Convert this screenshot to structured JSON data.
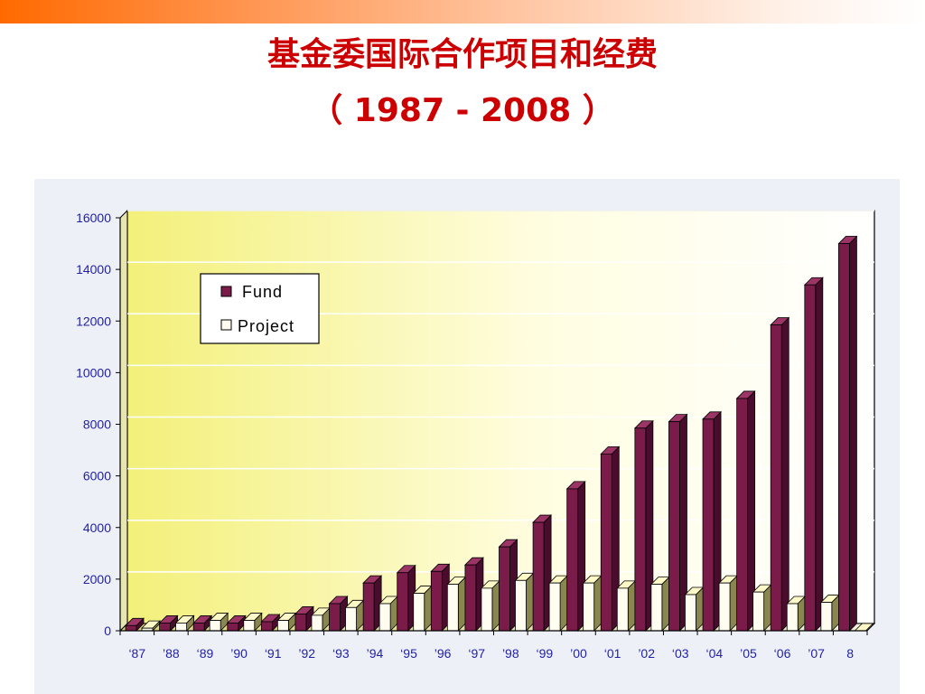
{
  "slide": {
    "title": "基金委国际合作项目和经费",
    "subtitle": "（ 1987 - 2008 ）"
  },
  "colors": {
    "fund_front": "#7a1b4a",
    "fund_side": "#4a0c2c",
    "fund_top": "#9c3566",
    "project_front": "#fffdf0",
    "project_side": "#8a8650",
    "project_top": "#fff9c8",
    "axis_text": "#1f1fa8",
    "title": "#cc0000"
  },
  "chart_data": {
    "type": "bar",
    "style": "3d-clustered-column",
    "categories": [
      "‘87",
      "’88",
      "‘89",
      "’90",
      "‘91",
      "’92",
      "‘93",
      "’94",
      "‘95",
      "’96",
      "‘97",
      "’98",
      "‘99",
      "’00",
      "‘01",
      "’02",
      "‘03",
      "‘04",
      "’05",
      "‘06",
      "’07",
      "8"
    ],
    "series": [
      {
        "name": "Fund",
        "color": "#7a1b4a",
        "values": [
          200,
          300,
          300,
          300,
          350,
          650,
          1050,
          1850,
          2250,
          2300,
          2550,
          3250,
          4200,
          5500,
          6850,
          7850,
          8100,
          8200,
          9000,
          11850,
          13400,
          15000
        ]
      },
      {
        "name": "Project",
        "color": "#fffdf0",
        "values": [
          100,
          300,
          400,
          400,
          400,
          600,
          900,
          1050,
          1450,
          1800,
          1650,
          1950,
          1850,
          1850,
          1650,
          1800,
          1400,
          1850,
          1500,
          1050,
          1100,
          0
        ]
      }
    ],
    "ylim": [
      0,
      16000
    ],
    "yticks": [
      "0",
      "2000",
      "4000",
      "6000",
      "8000",
      "10000",
      "12000",
      "14000",
      "16000"
    ],
    "grid": true,
    "legend": "top-left"
  }
}
